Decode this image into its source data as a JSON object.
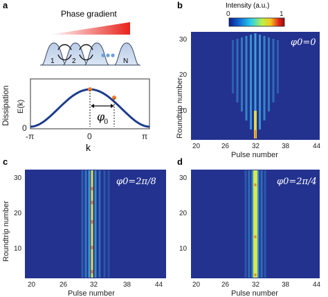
{
  "panels": {
    "a": {
      "label": "a",
      "phase_gradient_title": "Phase gradient",
      "site_labels": [
        "1",
        "2",
        "N"
      ],
      "dissipation_label": "Dissipation",
      "ek_label": "E(k)",
      "y_zero": "0",
      "x_ticks": [
        "-π",
        "0",
        "π"
      ],
      "k_label": "k",
      "phi_symbol": "φ",
      "phi_sub": "0"
    },
    "b": {
      "label": "b",
      "phi_text": "φ0=0"
    },
    "c": {
      "label": "c",
      "phi_text": "φ0=2π/8"
    },
    "d": {
      "label": "d",
      "phi_text": "φ0=2π/4"
    }
  },
  "colorbar": {
    "title": "Intensity (a.u.)",
    "min_label": "0",
    "max_label": "1",
    "colors": [
      "#0d1a8f",
      "#1170d8",
      "#2ad0e8",
      "#b8f04a",
      "#f5c51c",
      "#e0241a",
      "#9a0d0d"
    ]
  },
  "axes": {
    "x_label": "Pulse number",
    "y_label": "Roundtrip number",
    "x_ticks": [
      "20",
      "26",
      "32",
      "38",
      "44"
    ],
    "y_ticks": [
      "30",
      "20",
      "10"
    ]
  },
  "chart_data": [
    {
      "type": "line",
      "title": "",
      "xlabel": "k",
      "ylabel": "Dissipation E(k)",
      "x": [
        -3.14,
        -1.57,
        0,
        1.57,
        3.14
      ],
      "y": [
        0,
        0.5,
        1.0,
        0.5,
        0
      ],
      "markers": [
        {
          "x": 0,
          "label": "peak"
        },
        {
          "x": 0.8,
          "label": "φ0"
        }
      ]
    },
    {
      "type": "heatmap",
      "panel": "b",
      "xlabel": "Pulse number",
      "ylabel": "Roundtrip number",
      "xlim": [
        19,
        44
      ],
      "ylim": [
        2,
        33
      ],
      "x_ticks": [
        20,
        26,
        32,
        38,
        44
      ],
      "y_ticks": [
        10,
        20,
        30
      ],
      "description_series": [
        {
          "name": "φ0=0",
          "values": [
            32
          ]
        }
      ]
    },
    {
      "type": "heatmap",
      "panel": "c",
      "xlabel": "Pulse number",
      "ylabel": "Roundtrip number",
      "xlim": [
        19,
        44
      ],
      "ylim": [
        2,
        33
      ],
      "x_ticks": [
        20,
        26,
        32,
        38,
        44
      ],
      "y_ticks": [
        10,
        20,
        30
      ],
      "description_series": [
        {
          "name": "φ0=2π/8",
          "values": [
            32
          ]
        }
      ]
    },
    {
      "type": "heatmap",
      "panel": "d",
      "xlabel": "Pulse number",
      "ylabel": "Roundtrip number",
      "xlim": [
        19,
        44
      ],
      "ylim": [
        2,
        33
      ],
      "x_ticks": [
        20,
        26,
        32,
        38,
        44
      ],
      "y_ticks": [
        10,
        20,
        30
      ],
      "description_series": [
        {
          "name": "φ0=2π/4",
          "values": [
            32
          ]
        }
      ]
    }
  ]
}
